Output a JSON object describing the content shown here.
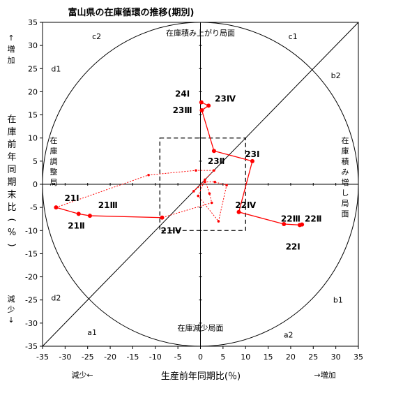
{
  "chart_data": {
    "type": "scatter",
    "title": "富山県の在庫循環の推移(期別)",
    "xlabel": "生産前年同期比(％)",
    "ylabel_chars": [
      "在",
      "庫",
      "前",
      "年",
      "同",
      "期",
      "末",
      "比",
      "(",
      "%",
      ")"
    ],
    "x_range": [
      -35,
      35
    ],
    "y_range": [
      -35,
      35
    ],
    "ticks": [
      -35,
      -30,
      -25,
      -20,
      -15,
      -10,
      -5,
      0,
      5,
      10,
      15,
      20,
      25,
      30,
      35
    ],
    "x_increase": "→増加",
    "x_decrease": "減少←",
    "y_increase": [
      "↑",
      "増",
      "加"
    ],
    "y_decrease": [
      "減",
      "少",
      "↓"
    ],
    "box": {
      "x": [
        -9,
        10
      ],
      "y": [
        -10,
        10
      ]
    },
    "phase_labels": {
      "top": "在庫積み上がり局面",
      "bottom": "在庫減少局面",
      "left": [
        "在",
        "庫",
        "調",
        "整",
        "局"
      ],
      "right": [
        "在",
        "庫",
        "積",
        "み",
        "増",
        "し",
        "局",
        "面"
      ]
    },
    "region_labels": {
      "c2": "c2",
      "c1": "c1",
      "d1": "d1",
      "b2": "b2",
      "d2": "d2",
      "b1": "b1",
      "a1": "a1",
      "a2": "a2"
    },
    "series": [
      {
        "style": "solid",
        "points": [
          {
            "x": 22.5,
            "y": -8.7,
            "label": "22Ⅰ"
          },
          {
            "x": 22,
            "y": -8.8,
            "label": "22Ⅱ"
          },
          {
            "x": 18.5,
            "y": -8.6,
            "label": "22Ⅲ"
          },
          {
            "x": 8.5,
            "y": -6,
            "label": "22Ⅳ"
          },
          {
            "x": 11.5,
            "y": 5,
            "label": "23Ⅰ"
          },
          {
            "x": 3,
            "y": 7.2,
            "label": "23Ⅱ"
          },
          {
            "x": 0.3,
            "y": 16,
            "label": "23Ⅲ"
          },
          {
            "x": 1.8,
            "y": 17,
            "label": "23Ⅳ"
          },
          {
            "x": 0.2,
            "y": 17.7,
            "label": "24Ⅰ"
          }
        ]
      },
      {
        "style": "solid",
        "points": [
          {
            "x": -8.5,
            "y": -7.2,
            "label": "21Ⅳ"
          },
          {
            "x": -24.5,
            "y": -6.8,
            "label": "21Ⅲ"
          },
          {
            "x": -27,
            "y": -6.4,
            "label": "21Ⅱ"
          },
          {
            "x": -32,
            "y": -5,
            "label": "21Ⅰ"
          }
        ]
      },
      {
        "style": "dotted",
        "points": [
          {
            "x": -32,
            "y": -5
          },
          {
            "x": -11.5,
            "y": 2
          },
          {
            "x": -1,
            "y": 3
          },
          {
            "x": 3,
            "y": 3
          },
          {
            "x": -1.5,
            "y": -1.5
          },
          {
            "x": 1,
            "y": 0.5
          },
          {
            "x": 3.2,
            "y": 0.5
          },
          {
            "x": 5.8,
            "y": -0.2
          },
          {
            "x": 4,
            "y": -8
          },
          {
            "x": -0.5,
            "y": -2.5
          },
          {
            "x": 1,
            "y": 1
          },
          {
            "x": 2,
            "y": -2
          },
          {
            "x": 2.5,
            "y": -4
          },
          {
            "x": -8.5,
            "y": -7.2
          }
        ]
      }
    ],
    "point_labels": [
      "22Ⅰ",
      "22Ⅱ",
      "22Ⅲ",
      "22Ⅳ",
      "23Ⅰ",
      "23Ⅱ",
      "23Ⅲ",
      "23Ⅳ",
      "24Ⅰ",
      "21Ⅰ",
      "21Ⅱ",
      "21Ⅲ",
      "21Ⅳ"
    ],
    "colors": {
      "series": "#ff0000",
      "axes": "#000000"
    }
  }
}
